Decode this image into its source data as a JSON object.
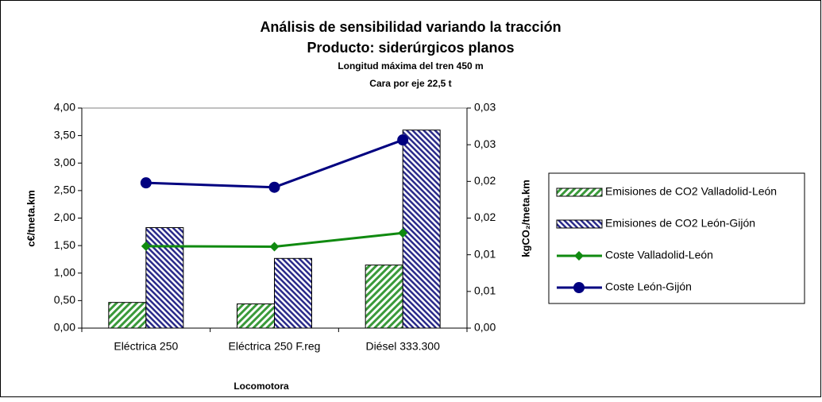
{
  "chart_data": {
    "type": "bar-line",
    "title": "Análisis de sensibilidad variando la tracción",
    "subtitle": "Producto: siderúrgicos planos",
    "annotations": [
      "Longitud máxima del tren 450 m",
      "Cara por eje 22,5 t"
    ],
    "x_label": "Locomotora",
    "y_label": "c€/tneta.km",
    "y2_label": "kgCO₂/tneta.km",
    "categories": [
      "Eléctrica 250",
      "Eléctrica 250 F.reg",
      "Diésel 333.300"
    ],
    "ylim": [
      0,
      4
    ],
    "yticks": [
      {
        "value": 0,
        "label": "0,00"
      },
      {
        "value": 0.5,
        "label": "0,50"
      },
      {
        "value": 1,
        "label": "1,00"
      },
      {
        "value": 1.5,
        "label": "1,50"
      },
      {
        "value": 2,
        "label": "2,00"
      },
      {
        "value": 2.5,
        "label": "2,50"
      },
      {
        "value": 3,
        "label": "3,00"
      },
      {
        "value": 3.5,
        "label": "3,50"
      },
      {
        "value": 4,
        "label": "4,00"
      }
    ],
    "y2lim": [
      0,
      0.03
    ],
    "y2ticks": [
      {
        "value": 0,
        "label": "0,00"
      },
      {
        "value": 0.005,
        "label": "0,01"
      },
      {
        "value": 0.01,
        "label": "0,01"
      },
      {
        "value": 0.015,
        "label": "0,02"
      },
      {
        "value": 0.02,
        "label": "0,02"
      },
      {
        "value": 0.025,
        "label": "0,03"
      },
      {
        "value": 0.03,
        "label": "0,03"
      }
    ],
    "grid": false,
    "legend": "right",
    "series": [
      {
        "name": "Emisiones de CO2 Valladolid-León",
        "type": "bar",
        "axis": "y2",
        "color": "#3a9a3a",
        "values": [
          0.0035,
          0.0033,
          0.0086
        ]
      },
      {
        "name": "Emisiones de CO2 León-Gijón",
        "type": "bar",
        "axis": "y2",
        "color": "#2a2a8a",
        "values": [
          0.0137,
          0.0095,
          0.027
        ]
      },
      {
        "name": "Coste Valladolid-León",
        "type": "line",
        "color": "#108a10",
        "values": [
          1.49,
          1.48,
          1.73
        ]
      },
      {
        "name": "Coste León-Gijón",
        "type": "line",
        "color": "#000080",
        "values": [
          2.64,
          2.56,
          3.42
        ]
      }
    ]
  }
}
